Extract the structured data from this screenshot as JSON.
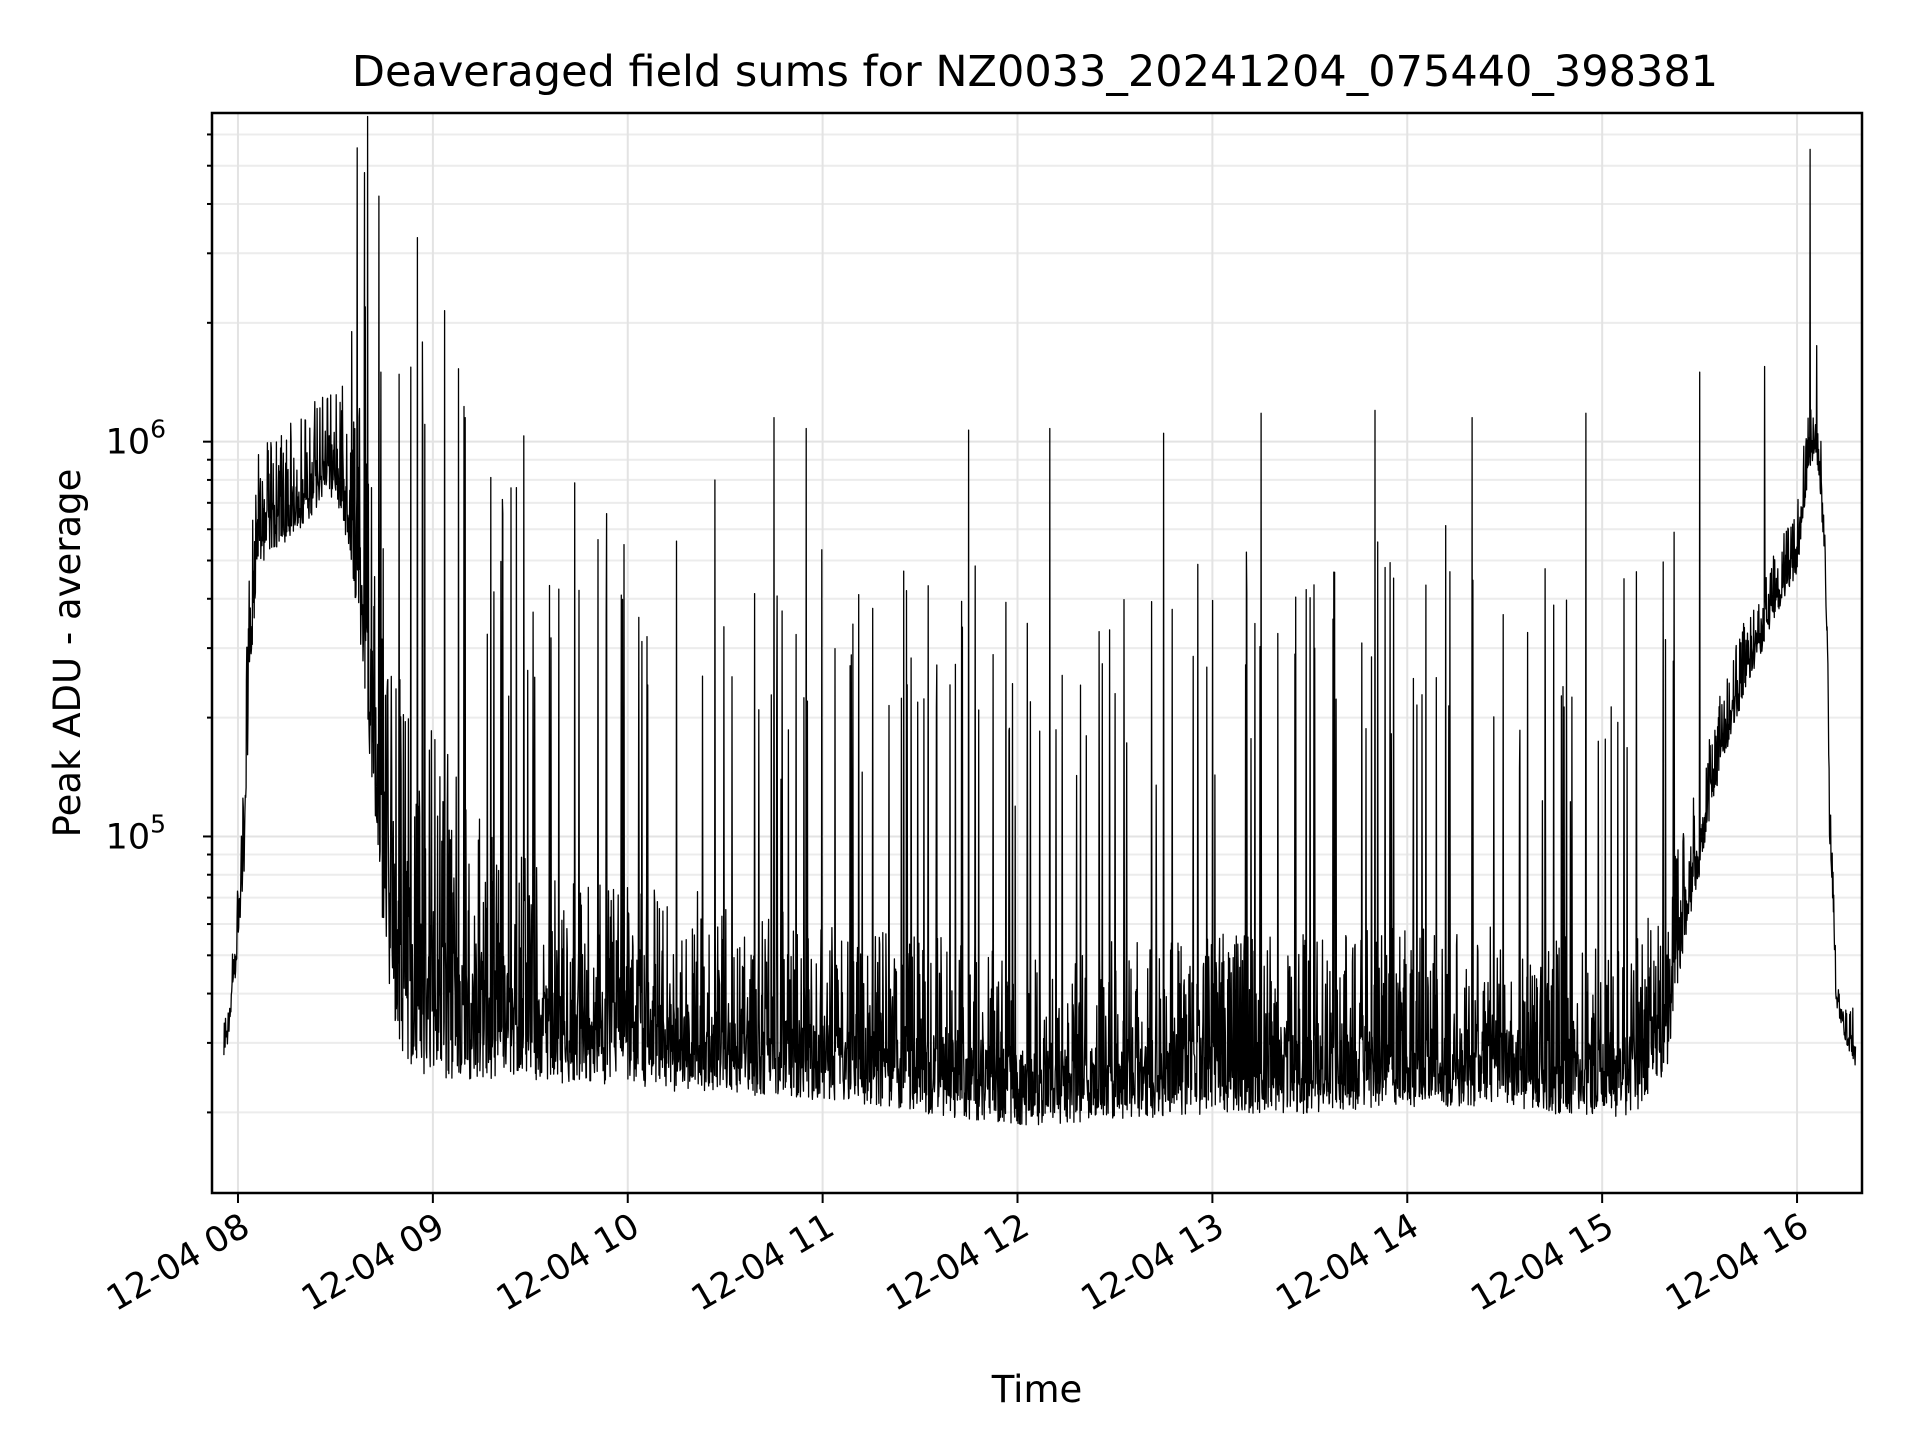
{
  "chart_data": {
    "type": "line",
    "title": "Deaveraged field sums for NZ0033_20241204_075440_398381",
    "xlabel": "Time",
    "ylabel": "Peak ADU - average",
    "x_range": [
      "2024-12-04T07:55:40",
      "2024-12-04T16:18:00"
    ],
    "xlim": [
      "2024-12-04T07:52:00",
      "2024-12-04T16:20:00"
    ],
    "y_scale": "log",
    "ylim": [
      12500,
      6800000
    ],
    "grid": true,
    "line_color": "#000000",
    "x_ticks": [
      {
        "label": "12-04 08",
        "value": "2024-12-04T08:00:00"
      },
      {
        "label": "12-04 09",
        "value": "2024-12-04T09:00:00"
      },
      {
        "label": "12-04 10",
        "value": "2024-12-04T10:00:00"
      },
      {
        "label": "12-04 11",
        "value": "2024-12-04T11:00:00"
      },
      {
        "label": "12-04 12",
        "value": "2024-12-04T12:00:00"
      },
      {
        "label": "12-04 13",
        "value": "2024-12-04T13:00:00"
      },
      {
        "label": "12-04 14",
        "value": "2024-12-04T14:00:00"
      },
      {
        "label": "12-04 15",
        "value": "2024-12-04T15:00:00"
      },
      {
        "label": "12-04 16",
        "value": "2024-12-04T16:00:00"
      }
    ],
    "y_ticks": [
      {
        "base": "10",
        "exp": "5",
        "value": 100000
      },
      {
        "base": "10",
        "exp": "6",
        "value": 1000000
      }
    ],
    "series": [
      {
        "x": [
          "2024-12-04T07:55:40",
          "2024-12-04T07:58:00",
          "2024-12-04T08:00:00",
          "2024-12-04T08:02:00",
          "2024-12-04T08:04:00",
          "2024-12-04T08:06:00",
          "2024-12-04T08:10:00",
          "2024-12-04T08:15:00",
          "2024-12-04T08:20:00",
          "2024-12-04T08:25:00",
          "2024-12-04T08:30:00",
          "2024-12-04T08:35:00",
          "2024-12-04T08:40:00",
          "2024-12-04T08:45:00",
          "2024-12-04T08:50:00",
          "2024-12-04T08:55:00",
          "2024-12-04T09:00:00",
          "2024-12-04T09:10:00",
          "2024-12-04T09:20:00",
          "2024-12-04T09:30:00",
          "2024-12-04T09:45:00",
          "2024-12-04T10:00:00",
          "2024-12-04T10:20:00",
          "2024-12-04T10:40:00",
          "2024-12-04T11:00:00",
          "2024-12-04T11:30:00",
          "2024-12-04T12:00:00",
          "2024-12-04T12:30:00",
          "2024-12-04T13:00:00",
          "2024-12-04T13:30:00",
          "2024-12-04T14:00:00",
          "2024-12-04T14:30:00",
          "2024-12-04T15:00:00",
          "2024-12-04T15:10:00",
          "2024-12-04T15:20:00",
          "2024-12-04T15:30:00",
          "2024-12-04T15:40:00",
          "2024-12-04T15:50:00",
          "2024-12-04T15:55:00",
          "2024-12-04T16:00:00",
          "2024-12-04T16:04:00",
          "2024-12-04T16:06:00",
          "2024-12-04T16:08:00",
          "2024-12-04T16:10:00",
          "2024-12-04T16:12:00",
          "2024-12-04T16:15:00",
          "2024-12-04T16:18:00"
        ],
        "baseline": [
          26000,
          38000,
          55000,
          90000,
          300000,
          550000,
          600000,
          650000,
          700000,
          800000,
          850000,
          600000,
          250000,
          80000,
          45000,
          40000,
          38000,
          35000,
          33000,
          32000,
          30000,
          30000,
          29000,
          28000,
          27000,
          25000,
          23000,
          24000,
          25000,
          25000,
          26000,
          26000,
          24000,
          25000,
          32000,
          90000,
          200000,
          330000,
          420000,
          500000,
          900000,
          1000000,
          650000,
          100000,
          40000,
          32000,
          28000
        ],
        "noise_amplitude": [
          1.3,
          1.3,
          1.5,
          1.8,
          2.2,
          1.8,
          1.8,
          1.8,
          1.8,
          1.8,
          1.8,
          2.4,
          4.5,
          8.0,
          7.0,
          6.5,
          6.0,
          4.5,
          3.5,
          3.0,
          2.8,
          2.8,
          2.8,
          2.6,
          2.5,
          2.5,
          2.4,
          2.5,
          2.5,
          2.5,
          2.5,
          2.5,
          2.5,
          2.6,
          2.5,
          1.6,
          1.5,
          1.4,
          1.4,
          1.4,
          1.5,
          1.6,
          1.6,
          1.3,
          1.3,
          1.3,
          1.3
        ],
        "spikes": [
          {
            "x": "2024-12-04T08:35:00",
            "y": 1900000
          },
          {
            "x": "2024-12-04T08:44:00",
            "y": 1500000
          },
          {
            "x": "2024-12-04T09:10:00",
            "y": 1150000
          },
          {
            "x": "2024-12-04T09:45:00",
            "y": 420000
          },
          {
            "x": "2024-12-04T10:15:00",
            "y": 560000
          },
          {
            "x": "2024-12-04T10:45:00",
            "y": 1150000
          },
          {
            "x": "2024-12-04T10:55:00",
            "y": 1080000
          },
          {
            "x": "2024-12-04T11:25:00",
            "y": 470000
          },
          {
            "x": "2024-12-04T11:45:00",
            "y": 1070000
          },
          {
            "x": "2024-12-04T12:10:00",
            "y": 1080000
          },
          {
            "x": "2024-12-04T12:45:00",
            "y": 1050000
          },
          {
            "x": "2024-12-04T13:15:00",
            "y": 1180000
          },
          {
            "x": "2024-12-04T13:50:00",
            "y": 1200000
          },
          {
            "x": "2024-12-04T14:20:00",
            "y": 1150000
          },
          {
            "x": "2024-12-04T14:55:00",
            "y": 1180000
          },
          {
            "x": "2024-12-04T15:30:00",
            "y": 1500000
          },
          {
            "x": "2024-12-04T15:50:00",
            "y": 1550000
          },
          {
            "x": "2024-12-04T16:04:00",
            "y": 5500000
          },
          {
            "x": "2024-12-04T16:06:00",
            "y": 1750000
          }
        ]
      }
    ]
  }
}
